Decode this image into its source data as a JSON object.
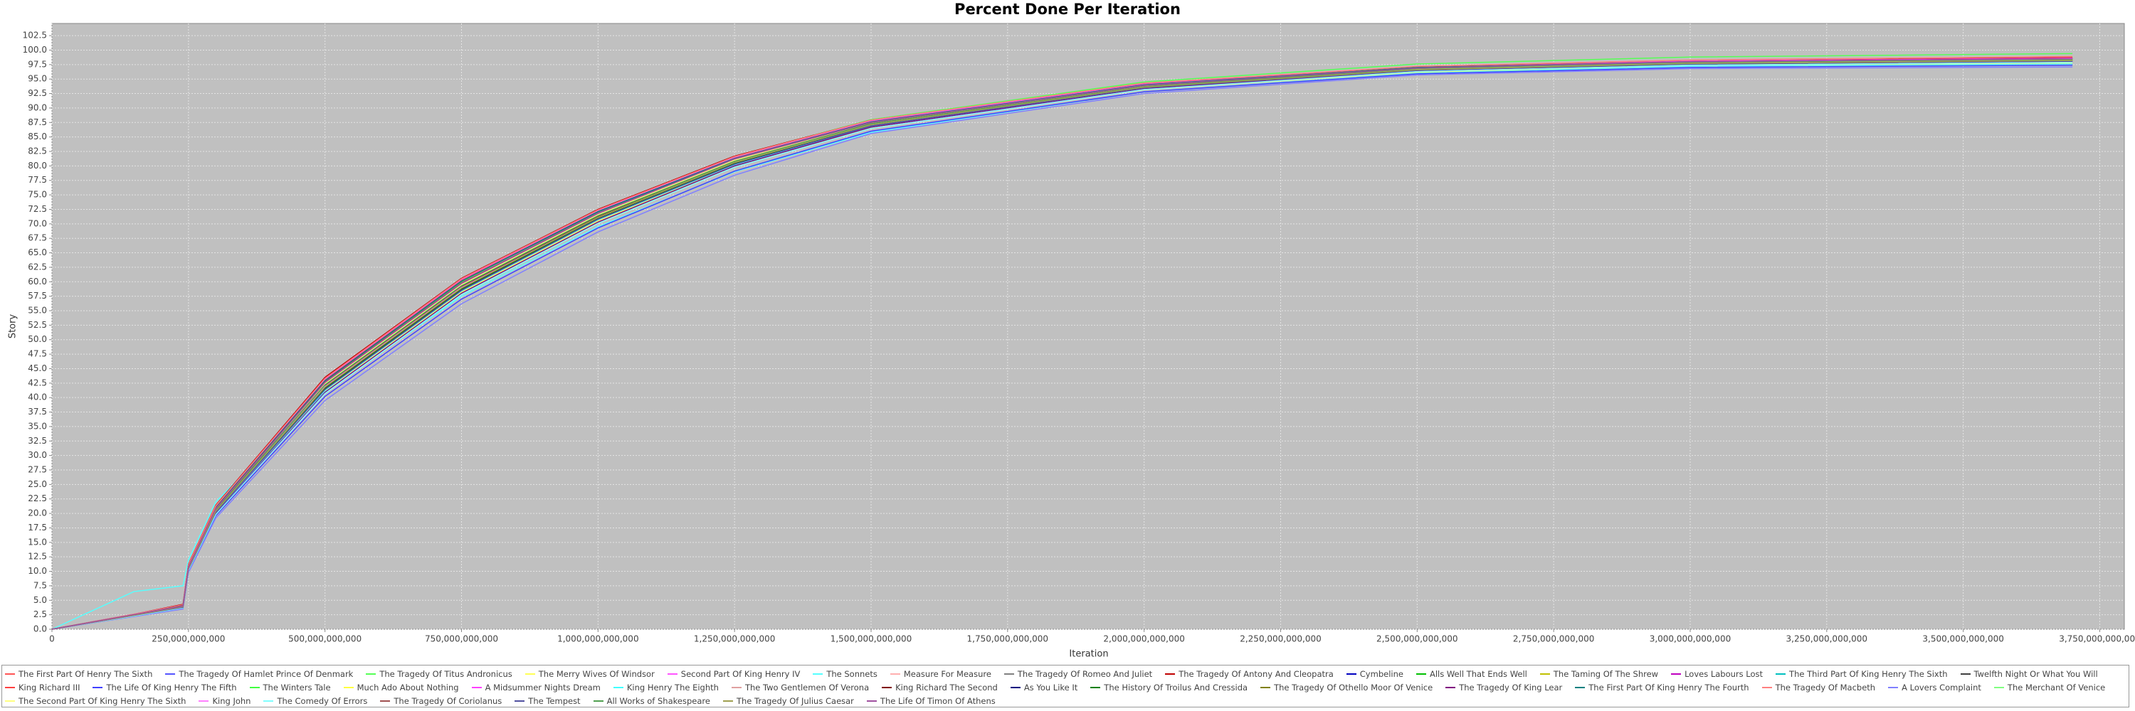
{
  "chart_data": {
    "type": "line",
    "title": "Percent Done Per Iteration",
    "x_label": "Iteration",
    "y_label": "Story",
    "grid": true,
    "x": [
      0,
      150000000000,
      240000000000,
      250000000000,
      300000000000,
      500000000000,
      750000000000,
      1000000000000,
      1250000000000,
      1500000000000,
      2000000000000,
      2500000000000,
      3000000000000,
      3700000000000
    ],
    "xlim": [
      0,
      3795000000000
    ],
    "ylim": [
      0,
      104.6
    ],
    "xticks": [
      {
        "value": 0,
        "label": "0"
      },
      {
        "value": 250000000000,
        "label": "250,000,000,000"
      },
      {
        "value": 500000000000,
        "label": "500,000,000,000"
      },
      {
        "value": 750000000000,
        "label": "750,000,000,000"
      },
      {
        "value": 1000000000000,
        "label": "1,000,000,000,000"
      },
      {
        "value": 1250000000000,
        "label": "1,250,000,000,000"
      },
      {
        "value": 1500000000000,
        "label": "1,500,000,000,000"
      },
      {
        "value": 1750000000000,
        "label": "1,750,000,000,000"
      },
      {
        "value": 2000000000000,
        "label": "2,000,000,000,000"
      },
      {
        "value": 2250000000000,
        "label": "2,250,000,000,000"
      },
      {
        "value": 2500000000000,
        "label": "2,500,000,000,000"
      },
      {
        "value": 2750000000000,
        "label": "2,750,000,000,000"
      },
      {
        "value": 3000000000000,
        "label": "3,000,000,000,000"
      },
      {
        "value": 3250000000000,
        "label": "3,250,000,000,000"
      },
      {
        "value": 3500000000000,
        "label": "3,500,000,000,000"
      },
      {
        "value": 3750000000000,
        "label": "3,750,000,000,000"
      }
    ],
    "yticks": [
      {
        "value": 0,
        "label": "0.0"
      },
      2.5,
      {
        "value": 5,
        "label": "5.0"
      },
      7.5,
      {
        "value": 10,
        "label": "10.0"
      },
      12.5,
      {
        "value": 15,
        "label": "15.0"
      },
      17.5,
      {
        "value": 20,
        "label": "20.0"
      },
      22.5,
      {
        "value": 25,
        "label": "25.0"
      },
      27.5,
      {
        "value": 30,
        "label": "30.0"
      },
      32.5,
      {
        "value": 35,
        "label": "35.0"
      },
      37.5,
      {
        "value": 40,
        "label": "40.0"
      },
      42.5,
      {
        "value": 45,
        "label": "45.0"
      },
      47.5,
      {
        "value": 50,
        "label": "50.0"
      },
      52.5,
      {
        "value": 55,
        "label": "55.0"
      },
      57.5,
      {
        "value": 60,
        "label": "60.0"
      },
      62.5,
      {
        "value": 65,
        "label": "65.0"
      },
      67.5,
      {
        "value": 70,
        "label": "70.0"
      },
      72.5,
      {
        "value": 75,
        "label": "75.0"
      },
      77.5,
      {
        "value": 80,
        "label": "80.0"
      },
      82.5,
      {
        "value": 85,
        "label": "85.0"
      },
      87.5,
      {
        "value": 90,
        "label": "90.0"
      },
      92.5,
      {
        "value": 95,
        "label": "95.0"
      },
      97.5,
      {
        "value": 100,
        "label": "100.0"
      },
      102.5
    ],
    "series": [
      {
        "name": "The First Part Of Henry The Sixth",
        "color": "#ff5555",
        "values": [
          0,
          2.5,
          4.0,
          10.9,
          21.0,
          43.0,
          60.2,
          72.0,
          81.3,
          87.6,
          94.0,
          96.9,
          97.9,
          98.4
        ]
      },
      {
        "name": "The Tragedy Of Hamlet Prince Of Denmark",
        "color": "#5555ff",
        "values": [
          0,
          2.3,
          3.8,
          10.4,
          20.2,
          41.5,
          58.6,
          70.8,
          80.4,
          87.0,
          93.6,
          96.6,
          97.7,
          98.2
        ]
      },
      {
        "name": "The Tragedy Of Titus Andronicus",
        "color": "#55ff55",
        "values": [
          0,
          2.6,
          4.1,
          11.0,
          21.2,
          42.8,
          60.0,
          72.3,
          81.6,
          88.0,
          94.5,
          97.6,
          98.8,
          99.4
        ]
      },
      {
        "name": "The Merry Wives Of Windsor",
        "color": "#ffff55",
        "values": [
          0,
          2.4,
          3.9,
          10.5,
          20.3,
          41.2,
          58.2,
          70.5,
          80.0,
          86.6,
          93.2,
          96.2,
          97.3,
          97.8
        ]
      },
      {
        "name": "Second Part Of King Henry IV",
        "color": "#ff55ff",
        "values": [
          0,
          2.5,
          4.2,
          10.8,
          20.8,
          42.5,
          59.5,
          71.6,
          81.0,
          87.4,
          93.8,
          96.8,
          97.9,
          98.5
        ]
      },
      {
        "name": "The Sonnets",
        "color": "#55ffff",
        "values": [
          0,
          6.5,
          7.5,
          12.0,
          22.0,
          41.0,
          57.5,
          69.5,
          79.0,
          85.8,
          92.8,
          96.0,
          97.2,
          97.6
        ]
      },
      {
        "name": "Measure For Measure",
        "color": "#ffafaf",
        "values": [
          0,
          2.4,
          3.8,
          10.6,
          20.6,
          42.2,
          59.3,
          71.4,
          80.9,
          87.3,
          93.7,
          96.7,
          97.8,
          98.3
        ]
      },
      {
        "name": "The Tragedy Of Romeo And Juliet",
        "color": "#808080",
        "values": [
          0,
          2.5,
          4.0,
          10.7,
          20.9,
          42.6,
          59.8,
          71.9,
          81.2,
          87.5,
          93.9,
          96.9,
          98.0,
          98.6
        ]
      },
      {
        "name": "The Tragedy Of Antony And Cleopatra",
        "color": "#c00000",
        "values": [
          0,
          2.6,
          4.3,
          11.2,
          21.4,
          43.5,
          60.6,
          72.5,
          81.7,
          87.9,
          94.2,
          97.1,
          98.1,
          98.7
        ]
      },
      {
        "name": "Cymbeline",
        "color": "#0000c0",
        "values": [
          0,
          2.4,
          3.9,
          10.5,
          20.4,
          41.8,
          58.9,
          71.1,
          80.6,
          87.1,
          93.6,
          96.6,
          97.7,
          98.2
        ]
      },
      {
        "name": "Alls Well That Ends Well",
        "color": "#00c000",
        "values": [
          0,
          2.5,
          4.0,
          10.6,
          20.5,
          42.1,
          59.2,
          71.3,
          80.8,
          87.2,
          93.7,
          96.8,
          97.9,
          98.4
        ]
      },
      {
        "name": "The Taming Of The Shrew",
        "color": "#c0c000",
        "values": [
          0,
          2.3,
          3.7,
          10.2,
          19.8,
          40.8,
          57.9,
          70.2,
          79.9,
          86.7,
          93.5,
          96.6,
          97.8,
          98.3
        ]
      },
      {
        "name": "Loves Labours Lost",
        "color": "#c000c0",
        "values": [
          0,
          2.4,
          3.9,
          10.6,
          20.6,
          42.3,
          59.4,
          71.5,
          81.0,
          87.4,
          93.9,
          96.9,
          98.0,
          98.5
        ]
      },
      {
        "name": "The Third Part Of King Henry The Sixth",
        "color": "#00c0c0",
        "values": [
          0,
          2.5,
          4.1,
          10.8,
          20.9,
          42.7,
          59.7,
          71.7,
          81.1,
          87.5,
          93.9,
          96.9,
          97.9,
          98.4
        ]
      },
      {
        "name": "Twelfth Night Or What You Will",
        "color": "#404040",
        "values": [
          0,
          2.4,
          3.8,
          10.4,
          20.2,
          41.6,
          58.7,
          70.9,
          80.4,
          86.9,
          93.4,
          96.4,
          97.5,
          98.0
        ]
      },
      {
        "name": "King Richard III",
        "color": "#ff4040",
        "values": [
          0,
          2.5,
          4.0,
          10.9,
          21.1,
          43.1,
          60.3,
          72.2,
          81.4,
          87.7,
          94.1,
          97.0,
          98.0,
          98.6
        ]
      },
      {
        "name": "The Life Of King Henry The Fifth",
        "color": "#4040ff",
        "values": [
          0,
          2.3,
          3.7,
          10.1,
          19.6,
          40.2,
          57.0,
          69.3,
          79.1,
          86.0,
          92.8,
          95.9,
          97.0,
          97.4
        ]
      },
      {
        "name": "The Winters Tale",
        "color": "#40ff40",
        "values": [
          0,
          2.4,
          3.9,
          10.5,
          20.4,
          41.9,
          59.0,
          71.2,
          80.7,
          87.2,
          93.7,
          96.7,
          97.8,
          98.3
        ]
      },
      {
        "name": "Much Ado About Nothing",
        "color": "#ffff40",
        "values": [
          0,
          2.5,
          4.0,
          10.7,
          20.7,
          42.4,
          59.6,
          71.7,
          81.1,
          87.4,
          93.8,
          96.8,
          97.9,
          98.4
        ]
      },
      {
        "name": "A Midsummer Nights Dream",
        "color": "#ff40ff",
        "values": [
          0,
          2.6,
          4.2,
          11.0,
          21.2,
          43.2,
          60.4,
          72.3,
          81.5,
          87.8,
          94.1,
          97.0,
          98.1,
          98.6
        ]
      },
      {
        "name": "King Henry The Eighth",
        "color": "#40ffff",
        "values": [
          0,
          2.4,
          3.8,
          10.4,
          20.1,
          41.3,
          58.4,
          70.7,
          80.2,
          86.8,
          93.4,
          96.5,
          97.6,
          98.1
        ]
      },
      {
        "name": "The Two Gentlemen Of Verona",
        "color": "#e0a0a0",
        "values": [
          0,
          2.5,
          4.1,
          10.8,
          20.9,
          42.6,
          59.7,
          71.8,
          81.2,
          87.6,
          94.0,
          97.0,
          98.0,
          98.5
        ]
      },
      {
        "name": "King Richard The Second",
        "color": "#800000",
        "values": [
          0,
          2.4,
          3.9,
          10.6,
          20.5,
          42.0,
          59.1,
          71.2,
          80.6,
          87.1,
          93.6,
          96.6,
          97.7,
          98.2
        ]
      },
      {
        "name": "As You Like It",
        "color": "#000080",
        "values": [
          0,
          2.5,
          4.0,
          10.7,
          20.8,
          42.5,
          59.5,
          71.6,
          81.0,
          87.4,
          93.8,
          96.8,
          97.9,
          98.4
        ]
      },
      {
        "name": "The History Of Troilus And Cressida",
        "color": "#008000",
        "values": [
          0,
          2.4,
          3.9,
          10.5,
          20.3,
          41.7,
          58.8,
          71.0,
          80.5,
          87.0,
          93.5,
          96.5,
          97.6,
          98.1
        ]
      },
      {
        "name": "The Tragedy Of Othello Moor Of Venice",
        "color": "#808000",
        "values": [
          0,
          2.5,
          4.0,
          10.7,
          20.7,
          42.3,
          59.4,
          71.5,
          80.9,
          87.3,
          93.7,
          96.7,
          97.8,
          98.3
        ]
      },
      {
        "name": "The Tragedy Of King Lear",
        "color": "#800080",
        "values": [
          0,
          2.4,
          3.8,
          10.3,
          19.9,
          40.9,
          58.0,
          70.3,
          80.0,
          86.7,
          93.3,
          96.4,
          97.6,
          98.0
        ]
      },
      {
        "name": "The First Part Of King Henry The Fourth",
        "color": "#008080",
        "values": [
          0,
          2.5,
          4.1,
          10.9,
          21.0,
          42.9,
          60.1,
          72.1,
          81.3,
          87.6,
          94.0,
          97.0,
          98.0,
          98.5
        ]
      },
      {
        "name": "The Tragedy Of Macbeth",
        "color": "#ff8080",
        "values": [
          0,
          2.6,
          4.2,
          11.1,
          21.3,
          43.3,
          60.5,
          72.4,
          81.6,
          87.9,
          94.3,
          97.2,
          98.3,
          98.9
        ]
      },
      {
        "name": "A Lovers Complaint",
        "color": "#8080ff",
        "values": [
          0,
          2.2,
          3.5,
          9.8,
          19.2,
          39.5,
          56.2,
          68.6,
          78.4,
          85.6,
          92.5,
          95.7,
          96.8,
          97.1
        ]
      },
      {
        "name": "The Merchant Of Venice",
        "color": "#80ff80",
        "values": [
          0,
          2.4,
          3.9,
          10.6,
          20.6,
          42.2,
          59.3,
          71.4,
          80.8,
          87.2,
          93.7,
          96.7,
          97.8,
          98.3
        ]
      },
      {
        "name": "The Second Part Of King Henry The Sixth",
        "color": "#ffff80",
        "values": [
          0,
          2.5,
          4.0,
          10.7,
          20.7,
          42.4,
          59.5,
          71.6,
          81.0,
          87.4,
          93.8,
          96.8,
          97.9,
          98.4
        ]
      },
      {
        "name": "King John",
        "color": "#ff80ff",
        "values": [
          0,
          2.4,
          3.9,
          10.5,
          20.4,
          41.9,
          59.0,
          71.1,
          80.6,
          87.1,
          93.6,
          96.6,
          97.7,
          98.2
        ]
      },
      {
        "name": "The Comedy Of Errors",
        "color": "#80ffff",
        "values": [
          0,
          2.3,
          3.7,
          10.2,
          19.8,
          40.7,
          57.8,
          70.1,
          79.8,
          86.5,
          93.2,
          96.3,
          97.4,
          97.9
        ]
      },
      {
        "name": "The Tragedy Of Coriolanus",
        "color": "#a05050",
        "values": [
          0,
          2.5,
          4.1,
          10.8,
          20.9,
          42.7,
          59.8,
          71.8,
          81.2,
          87.5,
          93.9,
          96.9,
          98.0,
          98.5
        ]
      },
      {
        "name": "The Tempest",
        "color": "#5050a0",
        "values": [
          0,
          2.4,
          3.8,
          10.4,
          20.2,
          41.4,
          58.5,
          70.8,
          80.3,
          86.9,
          93.5,
          96.5,
          97.6,
          98.1
        ]
      },
      {
        "name": "All Works of Shakespeare",
        "color": "#50a050",
        "values": [
          0,
          2.5,
          4.0,
          10.6,
          20.6,
          42.2,
          59.3,
          71.4,
          80.8,
          87.3,
          93.7,
          96.8,
          97.9,
          98.4
        ]
      },
      {
        "name": "The Tragedy Of Julius Caesar",
        "color": "#a0a050",
        "values": [
          0,
          2.4,
          3.9,
          10.5,
          20.4,
          41.8,
          58.9,
          71.1,
          80.6,
          87.1,
          93.6,
          96.6,
          97.7,
          98.2
        ]
      },
      {
        "name": "The Life Of Timon Of Athens",
        "color": "#a050a0",
        "values": [
          0,
          2.5,
          4.0,
          10.7,
          20.8,
          42.6,
          59.7,
          71.8,
          81.2,
          87.5,
          93.9,
          96.9,
          98.0,
          98.5
        ]
      }
    ]
  }
}
